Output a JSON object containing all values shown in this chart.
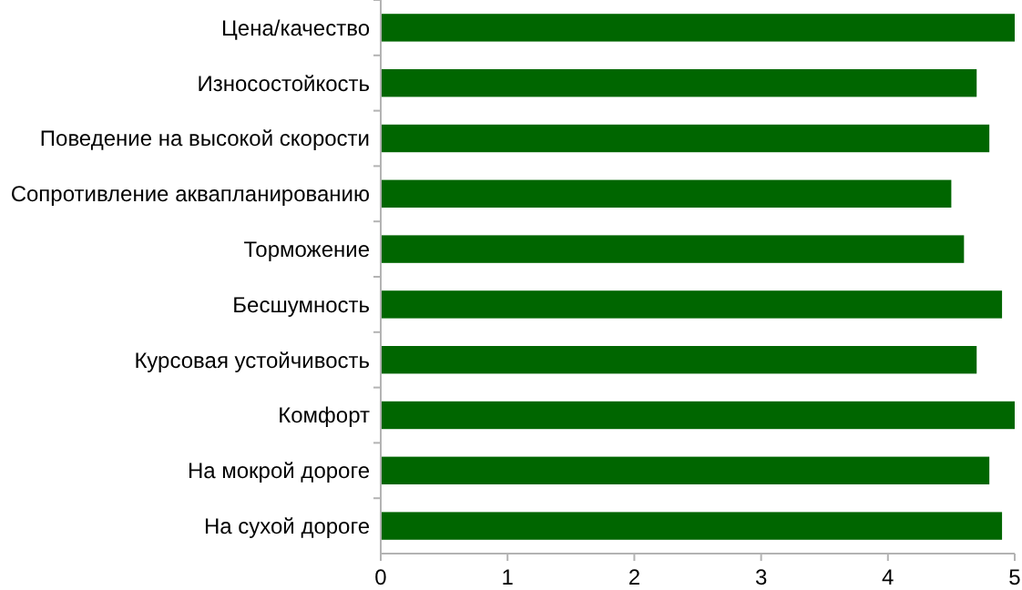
{
  "chart_data": {
    "type": "bar",
    "orientation": "horizontal",
    "categories": [
      "Цена/качество",
      "Износостойкость",
      "Поведение на высокой скорости",
      "Сопротивление аквапланированию",
      "Торможение",
      "Бесшумность",
      "Курсовая устойчивость",
      "Комфорт",
      "На мокрой дороге",
      "На сухой дороге"
    ],
    "values": [
      5.0,
      4.7,
      4.8,
      4.5,
      4.6,
      4.9,
      4.7,
      5.0,
      4.8,
      4.9
    ],
    "color": "#006600",
    "xlim": [
      0,
      5
    ],
    "xticks": [
      0,
      1,
      2,
      3,
      4,
      5
    ],
    "grid": false
  }
}
